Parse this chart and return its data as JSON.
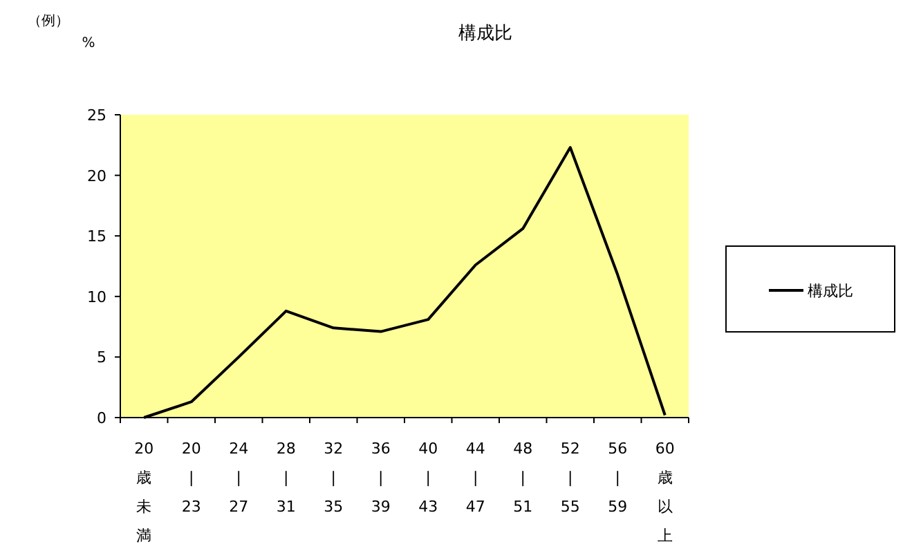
{
  "chart_data": {
    "type": "line",
    "title": "構成比",
    "ylabel": "%",
    "annotations": [
      "（例）"
    ],
    "categories": [
      "20歳未満",
      "20\n|\n23",
      "24\n|\n27",
      "28\n|\n31",
      "32\n|\n35",
      "36\n|\n39",
      "40\n|\n43",
      "44\n|\n47",
      "48\n|\n51",
      "52\n|\n55",
      "56\n|\n59",
      "60歳以上"
    ],
    "series": [
      {
        "name": "構成比",
        "color": "#000000",
        "values": [
          0,
          1.3,
          5.0,
          8.8,
          7.4,
          7.1,
          8.1,
          12.6,
          15.6,
          22.3,
          11.8,
          0.2
        ]
      }
    ],
    "ylim": [
      0,
      25
    ],
    "yticks": [
      0,
      5,
      10,
      15,
      20,
      25
    ],
    "legend": "right",
    "grid": false,
    "marker": "none",
    "line_style": "solid"
  }
}
